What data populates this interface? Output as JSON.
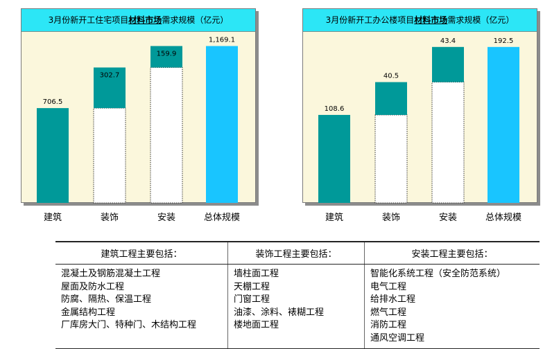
{
  "charts": [
    {
      "title_pre": "3月份新开工住宅项目",
      "title_bold": "材料市场",
      "title_post": "需求规模（亿元）"
    },
    {
      "title_pre": "3月份新开工办公楼项目",
      "title_bold": "材料市场",
      "title_post": "需求规模（亿元）"
    }
  ],
  "chart_data": [
    {
      "type": "bar",
      "subtype": "waterfall",
      "categories": [
        "建筑",
        "装饰",
        "安装",
        "总体规模"
      ],
      "values": [
        706.5,
        302.7,
        159.9,
        1169.1
      ],
      "value_labels": [
        "706.5",
        "302.7",
        "159.9",
        "1,169.1"
      ],
      "ylim": [
        0,
        1280
      ],
      "grid": false,
      "legend": "none",
      "colors": {
        "bar": "#009999",
        "total": "#19c5ff",
        "base": "#ffffff"
      }
    },
    {
      "type": "bar",
      "subtype": "waterfall",
      "categories": [
        "建筑",
        "装饰",
        "安装",
        "总体规模"
      ],
      "values": [
        108.6,
        40.5,
        43.4,
        192.5
      ],
      "value_labels": [
        "108.6",
        "40.5",
        "43.4",
        "192.5"
      ],
      "ylim": [
        0,
        212
      ],
      "grid": false,
      "legend": "none",
      "colors": {
        "bar": "#009999",
        "total": "#19c5ff",
        "base": "#ffffff"
      }
    }
  ],
  "scope_table": {
    "headers": [
      "建筑工程主要包括：",
      "装饰工程主要包括：",
      "安装工程主要包括："
    ],
    "columns": [
      [
        "混凝土及钢筋混凝土工程",
        "屋面及防水工程",
        "防腐、隔热、保温工程",
        "金属结构工程",
        "厂库房大门、特种门、木结构工程"
      ],
      [
        "墙柱面工程",
        "天棚工程",
        "门窗工程",
        "油漆、涂料、裱糊工程",
        "楼地面工程"
      ],
      [
        "智能化系统工程（安全防范系统）",
        "电气工程",
        "给排水工程",
        "燃气工程",
        "消防工程",
        "通风空调工程"
      ]
    ]
  }
}
